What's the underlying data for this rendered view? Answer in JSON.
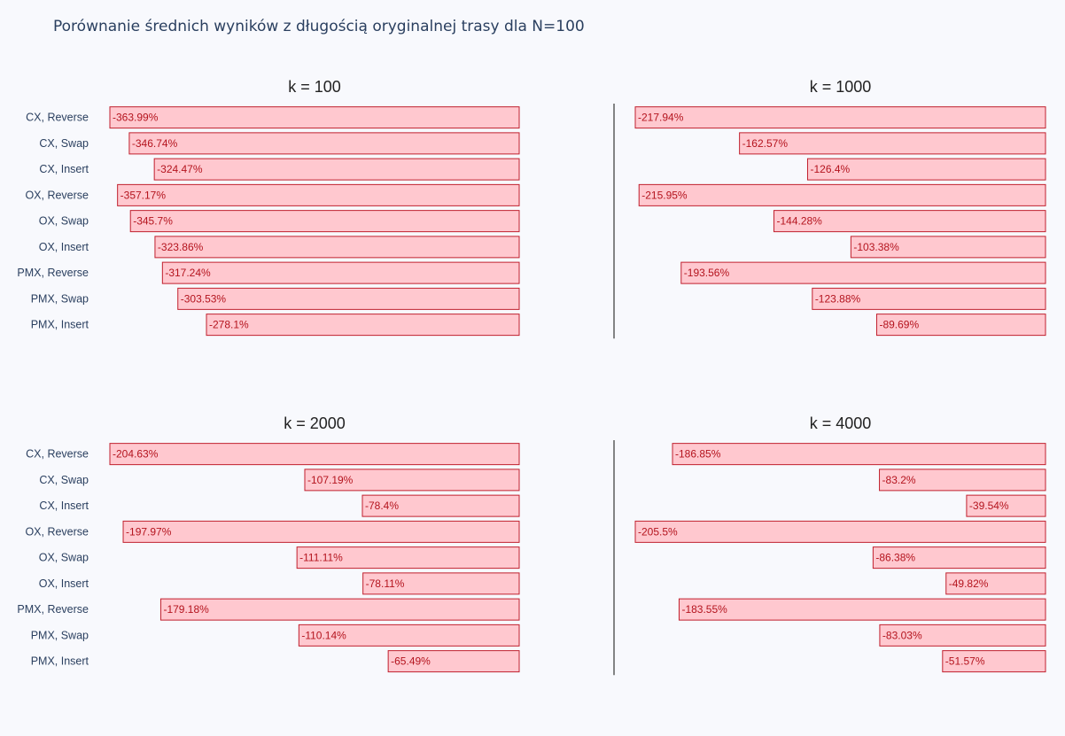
{
  "title": "Porównanie średnich wyników z długością oryginalnej trasy dla N=100",
  "colors": {
    "bar_fill": "#ffc8cf",
    "bar_stroke": "#c0202e",
    "label": "#b4141e",
    "axis_line": "#444444",
    "background": "#f8f9fd"
  },
  "chart_data": [
    {
      "type": "bar",
      "orientation": "horizontal",
      "title": "k = 100",
      "categories": [
        "CX, Reverse",
        "CX, Swap",
        "CX, Insert",
        "OX, Reverse",
        "OX, Swap",
        "OX, Insert",
        "PMX, Reverse",
        "PMX, Swap",
        "PMX, Insert"
      ],
      "values": [
        -363.99,
        -346.74,
        -324.47,
        -357.17,
        -345.7,
        -323.86,
        -317.24,
        -303.53,
        -278.1
      ],
      "value_labels": [
        "-363.99%",
        "-346.74%",
        "-324.47%",
        "-357.17%",
        "-345.7%",
        "-323.86%",
        "-317.24%",
        "-303.53%",
        "-278.1%"
      ],
      "xlim": [
        -363.99,
        0
      ],
      "show_category_labels": true
    },
    {
      "type": "bar",
      "orientation": "horizontal",
      "title": "k = 1000",
      "categories": [
        "CX, Reverse",
        "CX, Swap",
        "CX, Insert",
        "OX, Reverse",
        "OX, Swap",
        "OX, Insert",
        "PMX, Reverse",
        "PMX, Swap",
        "PMX, Insert"
      ],
      "values": [
        -217.94,
        -162.57,
        -126.4,
        -215.95,
        -144.28,
        -103.38,
        -193.56,
        -123.88,
        -89.69
      ],
      "value_labels": [
        "-217.94%",
        "-162.57%",
        "-126.4%",
        "-215.95%",
        "-144.28%",
        "-103.38%",
        "-193.56%",
        "-123.88%",
        "-89.69%"
      ],
      "xlim": [
        -217.94,
        0
      ],
      "show_category_labels": false
    },
    {
      "type": "bar",
      "orientation": "horizontal",
      "title": "k = 2000",
      "categories": [
        "CX, Reverse",
        "CX, Swap",
        "CX, Insert",
        "OX, Reverse",
        "OX, Swap",
        "OX, Insert",
        "PMX, Reverse",
        "PMX, Swap",
        "PMX, Insert"
      ],
      "values": [
        -204.63,
        -107.19,
        -78.4,
        -197.97,
        -111.11,
        -78.11,
        -179.18,
        -110.14,
        -65.49
      ],
      "value_labels": [
        "-204.63%",
        "-107.19%",
        "-78.4%",
        "-197.97%",
        "-111.11%",
        "-78.11%",
        "-179.18%",
        "-110.14%",
        "-65.49%"
      ],
      "xlim": [
        -204.63,
        0
      ],
      "show_category_labels": true
    },
    {
      "type": "bar",
      "orientation": "horizontal",
      "title": "k = 4000",
      "categories": [
        "CX, Reverse",
        "CX, Swap",
        "CX, Insert",
        "OX, Reverse",
        "OX, Swap",
        "OX, Insert",
        "PMX, Reverse",
        "PMX, Swap",
        "PMX, Insert"
      ],
      "values": [
        -186.85,
        -83.2,
        -39.54,
        -205.5,
        -86.38,
        -49.82,
        -183.55,
        -83.03,
        -51.57
      ],
      "value_labels": [
        "-186.85%",
        "-83.2%",
        "-39.54%",
        "-205.5%",
        "-86.38%",
        "-49.82%",
        "-183.55%",
        "-83.03%",
        "-51.57%"
      ],
      "xlim": [
        -205.5,
        0
      ],
      "show_category_labels": false
    }
  ]
}
